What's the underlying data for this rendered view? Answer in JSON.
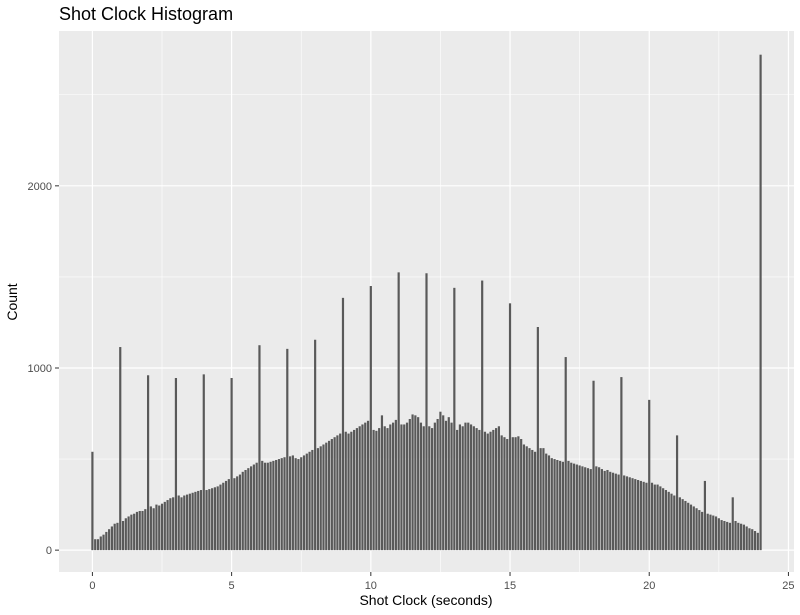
{
  "chart_data": {
    "type": "bar",
    "title": "Shot Clock Histogram",
    "xlabel": "Shot Clock (seconds)",
    "ylabel": "Count",
    "bin_width": 0.1,
    "xlim": [
      -1.2,
      25.2
    ],
    "ylim": [
      -120,
      2850
    ],
    "x_ticks": [
      0,
      5,
      10,
      15,
      20,
      25
    ],
    "y_ticks": [
      0,
      1000,
      2000
    ],
    "grid": true,
    "colors": {
      "bar": "#595959",
      "panel": "#ebebeb",
      "grid": "#ffffff"
    },
    "values": [
      540,
      60,
      60,
      75,
      85,
      100,
      115,
      130,
      145,
      150,
      1115,
      160,
      175,
      185,
      195,
      200,
      210,
      215,
      215,
      225,
      960,
      240,
      230,
      250,
      245,
      255,
      265,
      275,
      285,
      290,
      945,
      300,
      290,
      300,
      305,
      310,
      315,
      320,
      325,
      330,
      965,
      330,
      335,
      340,
      345,
      350,
      360,
      370,
      380,
      390,
      945,
      395,
      405,
      415,
      430,
      440,
      450,
      460,
      470,
      480,
      1125,
      490,
      480,
      480,
      485,
      490,
      495,
      500,
      505,
      510,
      1105,
      515,
      520,
      505,
      500,
      510,
      520,
      530,
      540,
      550,
      1155,
      560,
      570,
      580,
      590,
      600,
      610,
      620,
      630,
      640,
      1385,
      650,
      640,
      650,
      660,
      670,
      680,
      690,
      700,
      710,
      1450,
      660,
      655,
      670,
      740,
      680,
      670,
      690,
      700,
      715,
      1525,
      690,
      690,
      700,
      720,
      745,
      740,
      730,
      700,
      680,
      1520,
      680,
      670,
      700,
      720,
      760,
      740,
      710,
      730,
      700,
      1440,
      660,
      690,
      680,
      700,
      700,
      690,
      680,
      670,
      660,
      1480,
      650,
      640,
      650,
      660,
      670,
      680,
      630,
      620,
      610,
      1355,
      620,
      620,
      625,
      610,
      580,
      570,
      560,
      550,
      540,
      1225,
      560,
      560,
      530,
      520,
      505,
      500,
      495,
      490,
      485,
      1060,
      490,
      480,
      475,
      470,
      465,
      460,
      455,
      450,
      445,
      930,
      460,
      455,
      445,
      435,
      440,
      430,
      425,
      420,
      415,
      950,
      410,
      405,
      400,
      395,
      390,
      385,
      380,
      375,
      370,
      825,
      370,
      360,
      360,
      350,
      340,
      330,
      320,
      310,
      300,
      630,
      290,
      280,
      270,
      260,
      250,
      240,
      230,
      220,
      210,
      380,
      200,
      195,
      190,
      185,
      175,
      165,
      160,
      155,
      150,
      290,
      160,
      150,
      145,
      140,
      130,
      120,
      115,
      105,
      95,
      2720
    ]
  }
}
